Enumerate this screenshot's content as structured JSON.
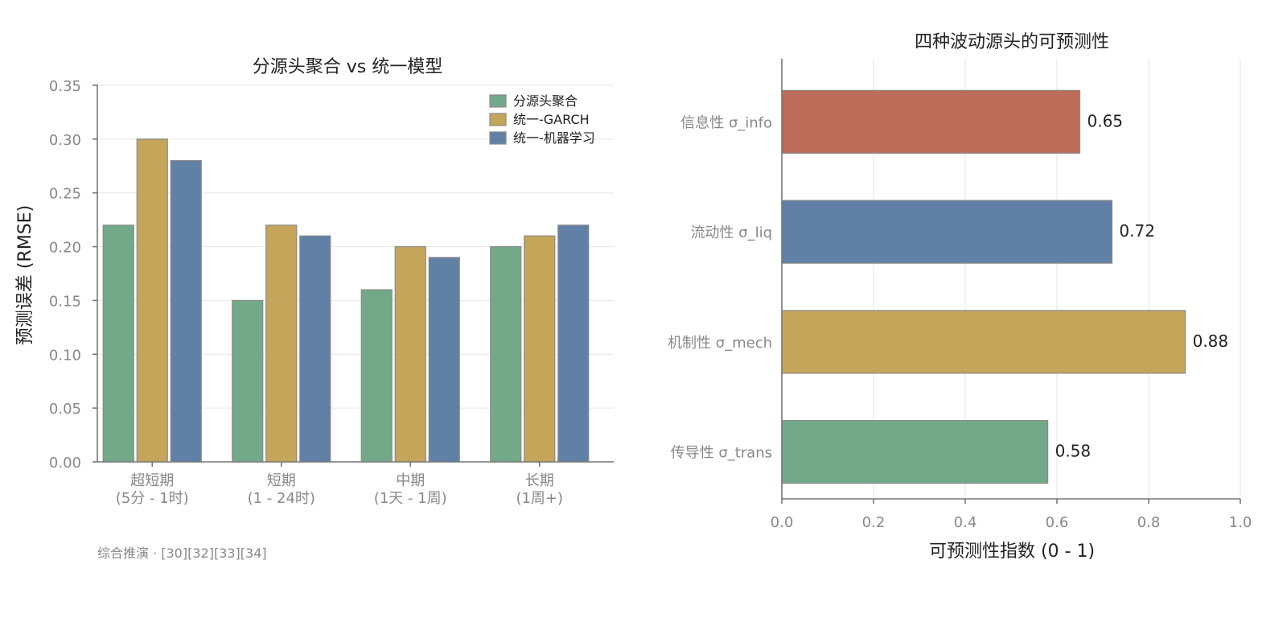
{
  "chart_data": [
    {
      "type": "bar",
      "title": "分源头聚合 vs 统一模型",
      "ylabel": "预测误差 (RMSE)",
      "xlabel": "",
      "ylim": [
        0,
        0.35
      ],
      "yticks": [
        "0.00",
        "0.05",
        "0.10",
        "0.15",
        "0.20",
        "0.25",
        "0.30",
        "0.35"
      ],
      "grid": "horizontal",
      "legend_position": "top-right",
      "categories": [
        [
          "超短期",
          "(5分 - 1时)"
        ],
        [
          "短期",
          "(1 - 24时)"
        ],
        [
          "中期",
          "(1天 - 1周)"
        ],
        [
          "长期",
          "(1周+)"
        ]
      ],
      "series": [
        {
          "name": "分源头聚合",
          "color": "#73a989",
          "values": [
            0.22,
            0.15,
            0.16,
            0.2
          ]
        },
        {
          "name": "统一-GARCH",
          "color": "#c4a55a",
          "values": [
            0.3,
            0.22,
            0.2,
            0.21
          ]
        },
        {
          "name": "统一-机器学习",
          "color": "#6081a5",
          "values": [
            0.28,
            0.21,
            0.19,
            0.22
          ]
        }
      ],
      "footnote": "综合推演 · [30][32][33][34]"
    },
    {
      "type": "bar",
      "orientation": "horizontal",
      "title": "四种波动源头的可预测性",
      "xlabel": "可预测性指数 (0 - 1)",
      "ylabel": "",
      "xlim": [
        0,
        1.0
      ],
      "xticks": [
        "0.0",
        "0.2",
        "0.4",
        "0.6",
        "0.8",
        "1.0"
      ],
      "grid": "vertical",
      "categories": [
        "信息性 σ_info",
        "流动性 σ_liq",
        "机制性 σ_mech",
        "传导性 σ_trans"
      ],
      "values": [
        0.65,
        0.72,
        0.88,
        0.58
      ],
      "value_labels": [
        "0.65",
        "0.72",
        "0.88",
        "0.58"
      ],
      "colors": [
        "#be6c5a",
        "#6081a5",
        "#c4a55a",
        "#73a989"
      ]
    }
  ]
}
